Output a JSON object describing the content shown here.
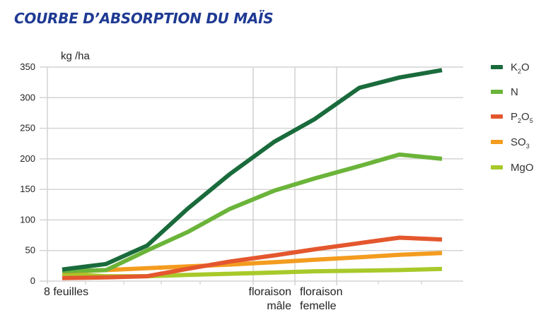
{
  "title": "COURBE D’ABSORPTION DU MAÏS",
  "chart_data": {
    "type": "line",
    "title": "COURBE D’ABSORPTION DU MAÏS",
    "ylabel": "kg /ha",
    "xlabel": "",
    "ylim": [
      0,
      350
    ],
    "yticks": [
      0,
      50,
      100,
      150,
      200,
      250,
      300,
      350
    ],
    "grid": true,
    "legend_position": "right",
    "x_annotations": [
      {
        "label": "8 feuilles",
        "line1": "8 feuilles",
        "line2": ""
      },
      {
        "label": "floraison mâle",
        "line1": "floraison",
        "line2": "mâle"
      },
      {
        "label": "floraison femelle",
        "line1": "floraison",
        "line2": "femelle"
      }
    ],
    "x": [
      0,
      1,
      2,
      3,
      4,
      5,
      6,
      7,
      8,
      9
    ],
    "series": [
      {
        "name": "K2O",
        "label_main": "K",
        "label_sub": "2",
        "label_tail": "O",
        "sub2": "",
        "color": "#1a6b3c",
        "values": [
          19,
          28,
          58,
          118,
          175,
          228,
          265,
          316,
          333,
          345
        ]
      },
      {
        "name": "N",
        "label_main": "N",
        "label_sub": "",
        "label_tail": "",
        "sub2": "",
        "color": "#6bb43a",
        "values": [
          16,
          18,
          50,
          80,
          118,
          148,
          168,
          188,
          207,
          200
        ]
      },
      {
        "name": "P2O5",
        "label_main": "P",
        "label_sub": "2",
        "label_tail": "O",
        "sub2": "5",
        "color": "#e4572e",
        "values": [
          5,
          6,
          8,
          20,
          32,
          42,
          52,
          62,
          71,
          68
        ]
      },
      {
        "name": "SO3",
        "label_main": "SO",
        "label_sub": "3",
        "label_tail": "",
        "sub2": "",
        "color": "#f39c1f",
        "values": [
          15,
          18,
          21,
          24,
          27,
          31,
          35,
          39,
          43,
          46
        ]
      },
      {
        "name": "MgO",
        "label_main": "MgO",
        "label_sub": "",
        "label_tail": "",
        "sub2": "",
        "color": "#a8c92a",
        "values": [
          12,
          8,
          8,
          10,
          12,
          14,
          16,
          17,
          18,
          20
        ]
      }
    ]
  }
}
